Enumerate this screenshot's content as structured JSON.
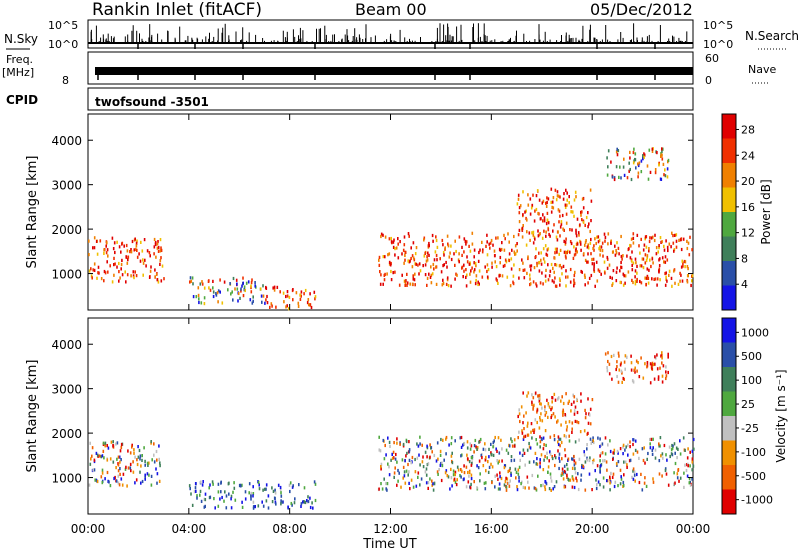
{
  "header": {
    "station": "Rankin Inlet (fitACF)",
    "beam": "Beam 00",
    "date": "05/Dec/2012"
  },
  "strip_labels": {
    "nsky": "N.Sky",
    "nsky_hi": "10^5",
    "nsky_lo": "10^0",
    "nsearch": "N.Search",
    "nsearch_hi": "10^5",
    "nsearch_lo": "10^0",
    "freq": "Freq.",
    "freq_unit": "[MHz]",
    "freq_hi": "",
    "freq_lo": "8",
    "nave": "Nave",
    "nave_hi": "60",
    "nave_lo": "0",
    "cpid": "CPID",
    "cpid_value": "twofsound -3501"
  },
  "colors": {
    "power_scale": [
      "#1414e6",
      "#2a4fa8",
      "#3f7f5a",
      "#4fa83f",
      "#f0c000",
      "#f08000",
      "#f03000",
      "#e00000"
    ],
    "velocity_scale": [
      "#e00000",
      "#f06000",
      "#f09000",
      "#c0c0c0",
      "#4fa83f",
      "#3f7f5a",
      "#2a4fa8",
      "#1414e6"
    ]
  },
  "chart_data": [
    {
      "type": "heatmap",
      "panel": "power",
      "xlabel": "",
      "ylabel": "Slant Range [km]",
      "x_ticks": [
        "00:00",
        "04:00",
        "08:00",
        "12:00",
        "16:00",
        "20:00",
        "00:00"
      ],
      "y_ticks": [
        1000,
        2000,
        3000,
        4000
      ],
      "xlim": [
        0,
        24
      ],
      "ylim": [
        180,
        4590
      ],
      "colorbar": {
        "label": "Power [dB]",
        "ticks": [
          "4",
          "8",
          "12",
          "16",
          "20",
          "24",
          "28"
        ],
        "range": [
          0,
          30
        ]
      },
      "scatter_regions": [
        {
          "t0": 0.0,
          "t1": 3.0,
          "r0": 800,
          "r1": 1800,
          "level": "high"
        },
        {
          "t0": 4.0,
          "t1": 7.0,
          "r0": 300,
          "r1": 900,
          "level": "mixed"
        },
        {
          "t0": 7.0,
          "t1": 9.0,
          "r0": 200,
          "r1": 700,
          "level": "high"
        },
        {
          "t0": 11.5,
          "t1": 24.0,
          "r0": 700,
          "r1": 1900,
          "level": "high"
        },
        {
          "t0": 17.0,
          "t1": 20.0,
          "r0": 1900,
          "r1": 2900,
          "level": "high"
        },
        {
          "t0": 20.5,
          "t1": 23.0,
          "r0": 3100,
          "r1": 3800,
          "level": "mixed"
        }
      ]
    },
    {
      "type": "heatmap",
      "panel": "velocity",
      "xlabel": "Time UT",
      "ylabel": "Slant Range [km]",
      "x_ticks": [
        "00:00",
        "04:00",
        "08:00",
        "12:00",
        "16:00",
        "20:00",
        "00:00"
      ],
      "y_ticks": [
        1000,
        2000,
        3000,
        4000
      ],
      "xlim": [
        0,
        24
      ],
      "ylim": [
        180,
        4590
      ],
      "colorbar": {
        "label": "Velocity [m s⁻¹]",
        "ticks": [
          "1000",
          "500",
          "100",
          "25",
          "-25",
          "-100",
          "-500",
          "-1000"
        ],
        "range": [
          -1000,
          1000
        ]
      },
      "scatter_regions": [
        {
          "t0": 0.0,
          "t1": 3.0,
          "r0": 800,
          "r1": 1800,
          "level": "mixed"
        },
        {
          "t0": 4.0,
          "t1": 9.0,
          "r0": 300,
          "r1": 900,
          "level": "positive"
        },
        {
          "t0": 11.5,
          "t1": 24.0,
          "r0": 700,
          "r1": 1900,
          "level": "mixed"
        },
        {
          "t0": 17.0,
          "t1": 20.0,
          "r0": 1900,
          "r1": 2900,
          "level": "negative"
        },
        {
          "t0": 20.5,
          "t1": 23.0,
          "r0": 3100,
          "r1": 3800,
          "level": "negative"
        }
      ]
    }
  ]
}
